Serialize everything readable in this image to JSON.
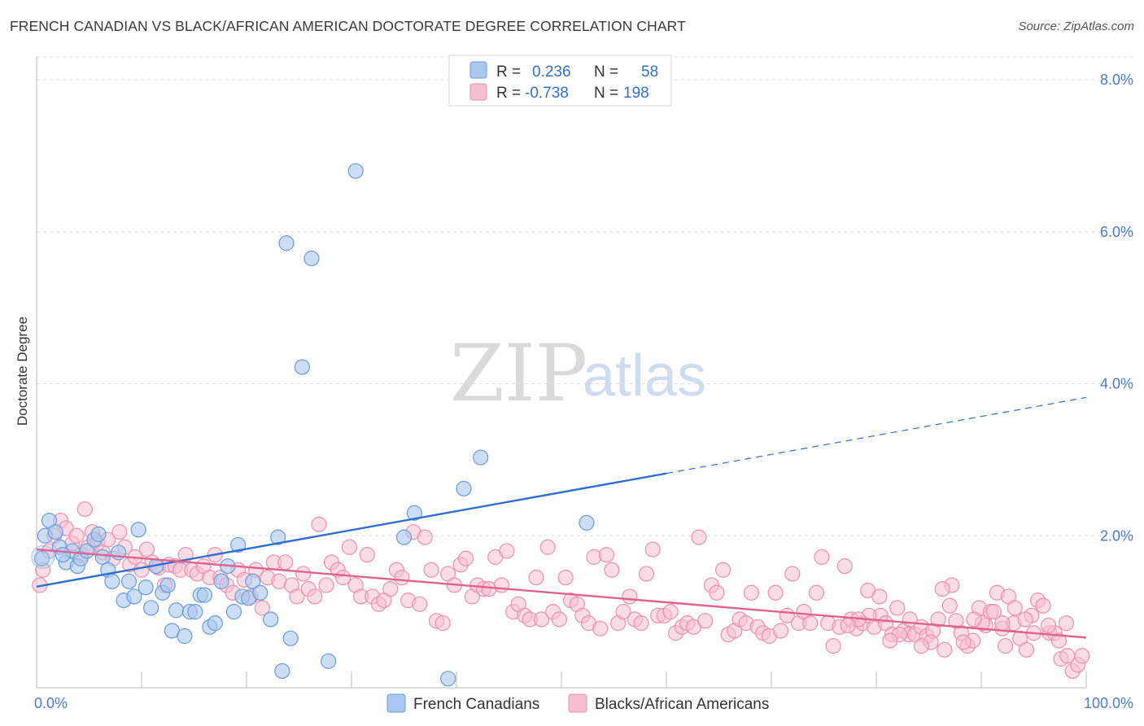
{
  "title": "FRENCH CANADIAN VS BLACK/AFRICAN AMERICAN DOCTORATE DEGREE CORRELATION CHART",
  "source": "Source: ZipAtlas.com",
  "watermark": {
    "zip": "ZIP",
    "atlas": "atlas"
  },
  "legend": {
    "rows": [
      {
        "r_label": "R =",
        "r_value": "0.236",
        "n_label": "N =",
        "n_value": "58"
      },
      {
        "r_label": "R =",
        "r_value": "-0.738",
        "n_label": "N =",
        "n_value": "198"
      }
    ]
  },
  "bottom_legend": [
    "French Canadians",
    "Blacks/African Americans"
  ],
  "colors": {
    "blue_fill": "#a9c8ef",
    "blue_stroke": "#6b9ad8",
    "blue_line": "#2f6fce",
    "pink_fill": "#f6bfd0",
    "pink_stroke": "#ec8fae",
    "pink_line": "#e0638e",
    "tick_text": "#4a7cc9",
    "grid": "#dddddd"
  },
  "chart_data": {
    "type": "scatter",
    "title": "FRENCH CANADIAN VS BLACK/AFRICAN AMERICAN DOCTORATE DEGREE CORRELATION CHART",
    "xlabel": "",
    "ylabel": "Doctorate Degree",
    "xlim": [
      0,
      100
    ],
    "ylim": [
      0,
      8.3
    ],
    "x_tick_labels": [
      "0.0%",
      "100.0%"
    ],
    "y_ticks": [
      2,
      4,
      6,
      8
    ],
    "y_tick_labels": [
      "2.0%",
      "4.0%",
      "6.0%",
      "8.0%"
    ],
    "grid": "horizontal dashed",
    "legend_position": "top-center",
    "series": [
      {
        "name": "French Canadians",
        "r": 0.236,
        "n": 58,
        "trend": {
          "x0": 0,
          "y0": 1.33,
          "x1": 60,
          "y1": 2.82,
          "dashed_to_x": 100,
          "dashed_to_y": 3.82
        },
        "points": [
          [
            0.8,
            2.0
          ],
          [
            1.2,
            2.2
          ],
          [
            1.8,
            2.05
          ],
          [
            2.2,
            1.85
          ],
          [
            2.8,
            1.65
          ],
          [
            3.4,
            1.8
          ],
          [
            3.9,
            1.6
          ],
          [
            4.2,
            1.7
          ],
          [
            4.8,
            1.8
          ],
          [
            5.5,
            1.95
          ],
          [
            5.9,
            2.02
          ],
          [
            6.3,
            1.72
          ],
          [
            6.8,
            1.55
          ],
          [
            7.2,
            1.4
          ],
          [
            7.8,
            1.78
          ],
          [
            8.3,
            1.15
          ],
          [
            8.8,
            1.4
          ],
          [
            9.3,
            1.2
          ],
          [
            9.7,
            2.08
          ],
          [
            10.4,
            1.32
          ],
          [
            10.9,
            1.05
          ],
          [
            11.4,
            1.6
          ],
          [
            12.0,
            1.25
          ],
          [
            12.5,
            1.35
          ],
          [
            12.9,
            0.75
          ],
          [
            13.3,
            1.02
          ],
          [
            14.1,
            0.68
          ],
          [
            14.6,
            1.0
          ],
          [
            15.1,
            1.0
          ],
          [
            15.6,
            1.22
          ],
          [
            16.0,
            1.22
          ],
          [
            16.5,
            0.8
          ],
          [
            17.0,
            0.85
          ],
          [
            17.6,
            1.4
          ],
          [
            18.2,
            1.6
          ],
          [
            18.8,
            1.0
          ],
          [
            19.2,
            1.88
          ],
          [
            19.6,
            1.2
          ],
          [
            20.2,
            1.18
          ],
          [
            20.6,
            1.4
          ],
          [
            21.3,
            1.25
          ],
          [
            22.3,
            0.9
          ],
          [
            23.0,
            1.98
          ],
          [
            23.4,
            0.22
          ],
          [
            23.8,
            5.85
          ],
          [
            24.2,
            0.65
          ],
          [
            25.3,
            4.22
          ],
          [
            26.2,
            5.65
          ],
          [
            27.8,
            0.35
          ],
          [
            30.4,
            6.8
          ],
          [
            35.0,
            1.98
          ],
          [
            36.0,
            2.3
          ],
          [
            39.2,
            0.12
          ],
          [
            40.7,
            2.62
          ],
          [
            42.3,
            3.03
          ],
          [
            52.4,
            2.17
          ],
          [
            0.5,
            1.7
          ],
          [
            2.5,
            1.75
          ]
        ]
      },
      {
        "name": "Blacks/African Americans",
        "r": -0.738,
        "n": 198,
        "trend": {
          "x0": 0,
          "y0": 1.82,
          "x1": 100,
          "y1": 0.66
        },
        "points": [
          [
            0.3,
            1.35
          ],
          [
            0.6,
            1.55
          ],
          [
            1.2,
            1.8
          ],
          [
            1.7,
            2.0
          ],
          [
            2.3,
            2.2
          ],
          [
            2.8,
            2.1
          ],
          [
            3.4,
            1.9
          ],
          [
            3.8,
            2.0
          ],
          [
            4.3,
            1.75
          ],
          [
            4.9,
            1.85
          ],
          [
            4.6,
            2.35
          ],
          [
            5.3,
            2.05
          ],
          [
            5.8,
            1.9
          ],
          [
            6.3,
            1.78
          ],
          [
            6.8,
            1.95
          ],
          [
            7.3,
            1.7
          ],
          [
            7.9,
            2.05
          ],
          [
            8.4,
            1.85
          ],
          [
            8.9,
            1.62
          ],
          [
            9.4,
            1.72
          ],
          [
            10.0,
            1.55
          ],
          [
            10.5,
            1.82
          ],
          [
            11.0,
            1.65
          ],
          [
            11.6,
            1.58
          ],
          [
            12.2,
            1.35
          ],
          [
            12.6,
            1.62
          ],
          [
            13.2,
            1.6
          ],
          [
            13.7,
            1.55
          ],
          [
            14.2,
            1.75
          ],
          [
            14.8,
            1.55
          ],
          [
            15.3,
            1.5
          ],
          [
            15.9,
            1.6
          ],
          [
            16.5,
            1.45
          ],
          [
            17.0,
            1.75
          ],
          [
            17.5,
            1.45
          ],
          [
            18.1,
            1.35
          ],
          [
            18.7,
            1.25
          ],
          [
            19.2,
            1.55
          ],
          [
            19.8,
            1.42
          ],
          [
            20.4,
            1.2
          ],
          [
            20.9,
            1.55
          ],
          [
            21.5,
            1.05
          ],
          [
            22.0,
            1.45
          ],
          [
            22.6,
            1.65
          ],
          [
            23.1,
            1.4
          ],
          [
            23.7,
            1.65
          ],
          [
            24.3,
            1.35
          ],
          [
            24.8,
            1.2
          ],
          [
            25.4,
            1.5
          ],
          [
            25.9,
            1.3
          ],
          [
            26.5,
            1.2
          ],
          [
            26.9,
            2.15
          ],
          [
            27.6,
            1.35
          ],
          [
            28.1,
            1.65
          ],
          [
            28.7,
            1.55
          ],
          [
            29.2,
            1.45
          ],
          [
            29.8,
            1.85
          ],
          [
            30.4,
            1.35
          ],
          [
            30.9,
            1.2
          ],
          [
            31.5,
            1.75
          ],
          [
            32.0,
            1.2
          ],
          [
            32.6,
            1.1
          ],
          [
            33.1,
            1.15
          ],
          [
            33.7,
            1.3
          ],
          [
            34.3,
            1.55
          ],
          [
            34.8,
            1.45
          ],
          [
            35.4,
            1.15
          ],
          [
            35.9,
            2.05
          ],
          [
            36.5,
            1.1
          ],
          [
            37.0,
            1.98
          ],
          [
            37.6,
            1.55
          ],
          [
            38.1,
            0.88
          ],
          [
            38.7,
            0.85
          ],
          [
            39.2,
            1.5
          ],
          [
            39.8,
            1.35
          ],
          [
            40.4,
            1.62
          ],
          [
            40.9,
            1.7
          ],
          [
            41.5,
            1.2
          ],
          [
            42.0,
            1.35
          ],
          [
            42.6,
            1.3
          ],
          [
            43.1,
            1.3
          ],
          [
            43.7,
            1.72
          ],
          [
            44.3,
            1.35
          ],
          [
            44.8,
            1.8
          ],
          [
            45.4,
            1.0
          ],
          [
            45.9,
            1.1
          ],
          [
            46.5,
            0.95
          ],
          [
            47.0,
            0.9
          ],
          [
            47.6,
            1.45
          ],
          [
            48.1,
            0.9
          ],
          [
            48.7,
            1.85
          ],
          [
            49.2,
            1.0
          ],
          [
            49.8,
            0.9
          ],
          [
            50.4,
            1.45
          ],
          [
            50.9,
            1.15
          ],
          [
            51.5,
            1.1
          ],
          [
            52.0,
            0.95
          ],
          [
            52.6,
            0.85
          ],
          [
            53.1,
            1.72
          ],
          [
            53.7,
            0.78
          ],
          [
            54.3,
            1.75
          ],
          [
            54.8,
            1.55
          ],
          [
            55.4,
            0.85
          ],
          [
            55.9,
            1.0
          ],
          [
            56.5,
            1.2
          ],
          [
            57.0,
            0.9
          ],
          [
            57.6,
            0.85
          ],
          [
            58.1,
            1.5
          ],
          [
            58.7,
            1.82
          ],
          [
            59.2,
            0.95
          ],
          [
            59.8,
            0.95
          ],
          [
            60.4,
            1.0
          ],
          [
            60.9,
            0.72
          ],
          [
            61.5,
            0.8
          ],
          [
            62.0,
            0.85
          ],
          [
            62.6,
            0.8
          ],
          [
            63.1,
            1.98
          ],
          [
            63.7,
            0.88
          ],
          [
            64.3,
            1.35
          ],
          [
            64.8,
            1.25
          ],
          [
            65.4,
            1.55
          ],
          [
            65.9,
            0.7
          ],
          [
            66.5,
            0.75
          ],
          [
            67.0,
            0.9
          ],
          [
            67.6,
            0.85
          ],
          [
            68.1,
            1.25
          ],
          [
            68.7,
            0.8
          ],
          [
            69.2,
            0.72
          ],
          [
            69.8,
            0.68
          ],
          [
            70.4,
            1.25
          ],
          [
            70.9,
            0.75
          ],
          [
            71.5,
            0.95
          ],
          [
            72.0,
            1.5
          ],
          [
            72.6,
            0.85
          ],
          [
            73.1,
            1.0
          ],
          [
            73.7,
            0.85
          ],
          [
            74.3,
            1.25
          ],
          [
            74.8,
            1.72
          ],
          [
            75.4,
            0.85
          ],
          [
            75.9,
            0.55
          ],
          [
            76.5,
            0.8
          ],
          [
            77.0,
            1.6
          ],
          [
            77.6,
            0.9
          ],
          [
            78.1,
            0.78
          ],
          [
            78.7,
            0.85
          ],
          [
            79.2,
            1.28
          ],
          [
            79.8,
            0.8
          ],
          [
            80.4,
            0.95
          ],
          [
            80.9,
            0.85
          ],
          [
            81.5,
            0.7
          ],
          [
            82.0,
            1.05
          ],
          [
            82.6,
            0.75
          ],
          [
            83.1,
            0.7
          ],
          [
            83.7,
            0.7
          ],
          [
            84.3,
            0.8
          ],
          [
            84.8,
            0.68
          ],
          [
            85.4,
            0.75
          ],
          [
            85.9,
            0.9
          ],
          [
            86.5,
            0.5
          ],
          [
            87.0,
            1.08
          ],
          [
            87.6,
            0.88
          ],
          [
            88.1,
            0.72
          ],
          [
            88.7,
            0.55
          ],
          [
            89.2,
            0.62
          ],
          [
            89.8,
            1.05
          ],
          [
            90.4,
            0.82
          ],
          [
            90.9,
            1.0
          ],
          [
            91.5,
            1.25
          ],
          [
            92.0,
            0.78
          ],
          [
            92.6,
            1.2
          ],
          [
            93.1,
            0.85
          ],
          [
            93.7,
            0.65
          ],
          [
            94.3,
            0.5
          ],
          [
            94.8,
            0.95
          ],
          [
            95.4,
            1.15
          ],
          [
            95.9,
            1.08
          ],
          [
            96.5,
            0.72
          ],
          [
            97.0,
            0.72
          ],
          [
            97.6,
            0.38
          ],
          [
            98.1,
            0.85
          ],
          [
            98.7,
            0.22
          ],
          [
            99.2,
            0.3
          ],
          [
            99.6,
            0.42
          ],
          [
            96.4,
            0.82
          ],
          [
            97.4,
            0.62
          ],
          [
            98.2,
            0.42
          ],
          [
            95.0,
            0.72
          ],
          [
            94.2,
            0.9
          ],
          [
            93.2,
            1.05
          ],
          [
            92.3,
            0.55
          ],
          [
            91.2,
            1.0
          ],
          [
            90.1,
            0.85
          ],
          [
            89.3,
            0.9
          ],
          [
            88.3,
            0.6
          ],
          [
            87.2,
            1.35
          ],
          [
            86.3,
            1.3
          ],
          [
            85.2,
            0.6
          ],
          [
            84.3,
            0.55
          ],
          [
            83.2,
            0.9
          ],
          [
            82.2,
            0.7
          ],
          [
            81.3,
            0.62
          ],
          [
            80.3,
            1.2
          ],
          [
            79.3,
            0.95
          ],
          [
            78.3,
            0.9
          ],
          [
            77.3,
            0.82
          ],
          [
            92.0,
            0.85
          ]
        ]
      }
    ]
  }
}
